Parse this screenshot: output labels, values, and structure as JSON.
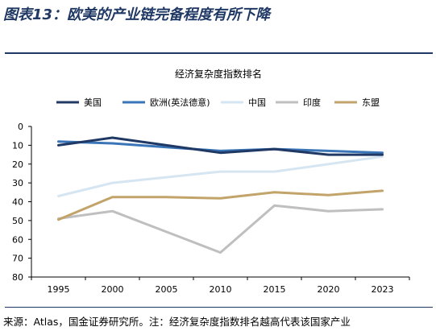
{
  "figure": {
    "title": "图表13：欧美的产业链完备程度有所下降",
    "source": "来源：Atlas，国金证券研究所。注：经济复杂度指数排名越高代表该国家产业"
  },
  "colors": {
    "accent": "#1f3864"
  },
  "chart_data": {
    "type": "line",
    "title": "经济复杂度指数排名",
    "xlabel": "",
    "ylabel": "",
    "x": [
      1995,
      2000,
      2005,
      2010,
      2015,
      2020,
      2023
    ],
    "ylim": [
      0,
      80
    ],
    "y_inverted": true,
    "y_ticks": [
      0,
      10,
      20,
      30,
      40,
      50,
      60,
      70,
      80
    ],
    "grid": false,
    "legend_position": "top",
    "series": [
      {
        "name": "美国",
        "color": "#1f3864",
        "values": [
          10,
          6,
          10,
          14,
          12,
          15,
          15
        ]
      },
      {
        "name": "欧洲(英法德意)",
        "color": "#3a75b8",
        "values": [
          8,
          9,
          11,
          13,
          12,
          13,
          14
        ]
      },
      {
        "name": "中国",
        "color": "#d6e5f2",
        "values": [
          37,
          30,
          27,
          24,
          24,
          20,
          16
        ]
      },
      {
        "name": "印度",
        "color": "#bfbfbf",
        "values": [
          49,
          45,
          56,
          67,
          42,
          45,
          44
        ]
      },
      {
        "name": "东盟",
        "color": "#c2a46a",
        "values": [
          49.5,
          37.5,
          37.5,
          38.2,
          35,
          36.5,
          34.2
        ]
      }
    ]
  }
}
